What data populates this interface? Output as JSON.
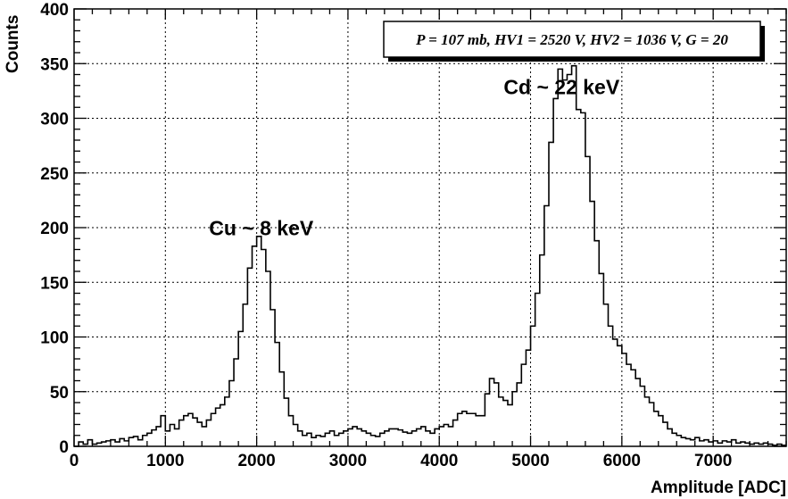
{
  "chart_data": {
    "type": "histogram",
    "title": "",
    "xlabel": "Amplitude [ADC]",
    "ylabel": "Counts",
    "xlim": [
      0,
      7800
    ],
    "ylim": [
      0,
      400
    ],
    "xticks": [
      0,
      1000,
      2000,
      3000,
      4000,
      5000,
      6000,
      7000
    ],
    "yticks": [
      0,
      50,
      100,
      150,
      200,
      250,
      300,
      350,
      400
    ],
    "grid": true,
    "legend": "none",
    "line_color": "#000000",
    "bin_width": 50,
    "x_start": 0,
    "values": [
      0,
      4,
      2,
      6,
      2,
      3,
      4,
      5,
      6,
      4,
      7,
      5,
      8,
      9,
      6,
      10,
      12,
      15,
      18,
      28,
      14,
      20,
      16,
      24,
      28,
      30,
      26,
      22,
      18,
      24,
      30,
      35,
      38,
      45,
      60,
      80,
      105,
      130,
      163,
      183,
      192,
      180,
      160,
      125,
      95,
      68,
      44,
      28,
      20,
      14,
      10,
      12,
      8,
      10,
      9,
      12,
      14,
      10,
      12,
      14,
      16,
      18,
      16,
      14,
      12,
      10,
      9,
      12,
      14,
      16,
      16,
      15,
      13,
      12,
      14,
      16,
      18,
      14,
      12,
      16,
      18,
      20,
      18,
      24,
      30,
      32,
      30,
      30,
      28,
      28,
      48,
      62,
      58,
      45,
      42,
      38,
      50,
      58,
      75,
      88,
      110,
      140,
      175,
      220,
      278,
      318,
      345,
      335,
      340,
      348,
      308,
      305,
      265,
      224,
      188,
      158,
      130,
      110,
      98,
      92,
      85,
      75,
      70,
      62,
      55,
      45,
      40,
      32,
      28,
      22,
      16,
      12,
      10,
      8,
      7,
      6,
      8,
      5,
      6,
      4,
      5,
      3,
      5,
      4,
      6,
      3,
      4,
      3,
      2,
      3,
      2,
      3,
      2,
      1,
      2,
      1
    ],
    "annotations": [
      {
        "text": "Cu ~ 8 keV",
        "x": 2050,
        "y": 193
      },
      {
        "text": "Cd ~ 22 keV",
        "x": 5340,
        "y": 322
      }
    ],
    "stats_box": "P = 107 mb, HV1 = 2520 V, HV2 = 1036 V, G = 20"
  }
}
